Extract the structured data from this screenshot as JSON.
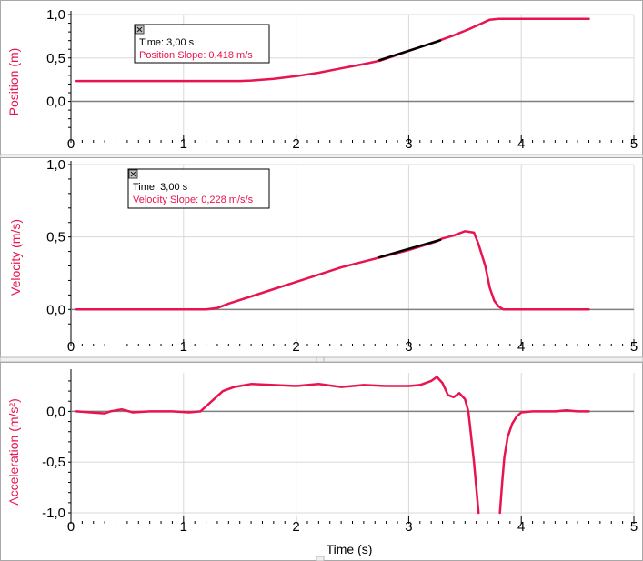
{
  "chart_data": [
    {
      "type": "line",
      "ylabel": "Position (m)",
      "xlim": [
        0,
        5
      ],
      "ylim": [
        -0.35,
        1.0
      ],
      "xticks": [
        "0",
        "1",
        "2",
        "3",
        "4",
        "5"
      ],
      "yticks": [
        {
          "value": 0.0,
          "label": "0,0"
        },
        {
          "value": 0.5,
          "label": "0,5"
        },
        {
          "value": 1.0,
          "label": "1,0"
        }
      ],
      "grid": true,
      "series": [
        {
          "color": "#e8134f",
          "x": [
            0.05,
            0.5,
            1.0,
            1.5,
            1.6,
            1.8,
            2.0,
            2.2,
            2.4,
            2.6,
            2.75,
            3.0,
            3.25,
            3.4,
            3.55,
            3.65,
            3.72,
            3.8,
            4.0,
            4.3,
            4.6
          ],
          "y": [
            0.235,
            0.235,
            0.235,
            0.235,
            0.24,
            0.26,
            0.29,
            0.33,
            0.38,
            0.43,
            0.47,
            0.58,
            0.69,
            0.76,
            0.84,
            0.9,
            0.94,
            0.95,
            0.95,
            0.95,
            0.95
          ]
        }
      ],
      "tangent": {
        "x": [
          2.74,
          3.28
        ],
        "y": [
          0.475,
          0.7
        ]
      },
      "annotation": {
        "time": "Time: 3,00 s",
        "slope": "Position  Slope: 0,418 m/s"
      }
    },
    {
      "type": "line",
      "ylabel": "Velocity (m/s)",
      "xlim": [
        0,
        5
      ],
      "ylim": [
        -0.18,
        1.0
      ],
      "xticks": [
        "0",
        "1",
        "2",
        "3",
        "4",
        "5"
      ],
      "yticks": [
        {
          "value": 0.0,
          "label": "0,0"
        },
        {
          "value": 0.5,
          "label": "0,5"
        },
        {
          "value": 1.0,
          "label": "1,0"
        }
      ],
      "grid": true,
      "series": [
        {
          "color": "#e8134f",
          "x": [
            0.05,
            0.5,
            1.0,
            1.2,
            1.3,
            1.4,
            1.6,
            1.8,
            2.0,
            2.2,
            2.4,
            2.6,
            2.75,
            3.0,
            3.25,
            3.3,
            3.4,
            3.5,
            3.58,
            3.62,
            3.68,
            3.72,
            3.76,
            3.8,
            3.84,
            3.9,
            4.0,
            4.3,
            4.6
          ],
          "y": [
            0.0,
            0.0,
            0.0,
            0.0,
            0.01,
            0.04,
            0.09,
            0.14,
            0.19,
            0.24,
            0.29,
            0.33,
            0.36,
            0.41,
            0.47,
            0.49,
            0.51,
            0.54,
            0.53,
            0.45,
            0.3,
            0.15,
            0.06,
            0.02,
            0.0,
            0.0,
            0.0,
            0.0,
            0.0
          ]
        }
      ],
      "tangent": {
        "x": [
          2.74,
          3.28
        ],
        "y": [
          0.36,
          0.48
        ]
      },
      "annotation": {
        "time": "Time: 3,00 s",
        "slope": "Velocity  Slope: 0,228 m/s/s"
      }
    },
    {
      "type": "line",
      "ylabel": "Acceleration (m/s²)",
      "xlabel": "Time (s)",
      "xlim": [
        0,
        5
      ],
      "ylim": [
        -1.0,
        0.38
      ],
      "xticks": [
        "0",
        "1",
        "2",
        "3",
        "4",
        "5"
      ],
      "yticks": [
        {
          "value": 0.0,
          "label": "0,0"
        },
        {
          "value": -0.5,
          "label": "-0,5"
        },
        {
          "value": -1.0,
          "label": "-1,0"
        }
      ],
      "grid": true,
      "series": [
        {
          "color": "#e8134f",
          "x": [
            0.05,
            0.3,
            0.35,
            0.45,
            0.55,
            0.7,
            0.9,
            1.05,
            1.15,
            1.25,
            1.35,
            1.45,
            1.6,
            1.8,
            2.0,
            2.2,
            2.4,
            2.6,
            2.8,
            3.0,
            3.1,
            3.2,
            3.25,
            3.3,
            3.35,
            3.4,
            3.45,
            3.5,
            3.53,
            3.55,
            3.58,
            3.62
          ],
          "y": [
            0.0,
            -0.02,
            0.0,
            0.02,
            -0.01,
            0.0,
            0.0,
            -0.01,
            0.0,
            0.1,
            0.2,
            0.24,
            0.27,
            0.26,
            0.25,
            0.27,
            0.24,
            0.26,
            0.25,
            0.25,
            0.26,
            0.3,
            0.34,
            0.28,
            0.16,
            0.14,
            0.18,
            0.12,
            0.0,
            -0.2,
            -0.5,
            -1.0
          ]
        },
        {
          "color": "#e8134f",
          "x": [
            3.81,
            3.83,
            3.85,
            3.88,
            3.92,
            3.96,
            4.0,
            4.1,
            4.2,
            4.3,
            4.4,
            4.5,
            4.6
          ],
          "y": [
            -1.0,
            -0.7,
            -0.45,
            -0.25,
            -0.12,
            -0.05,
            -0.01,
            0.0,
            0.0,
            0.0,
            0.01,
            0.0,
            0.0
          ]
        }
      ]
    }
  ]
}
